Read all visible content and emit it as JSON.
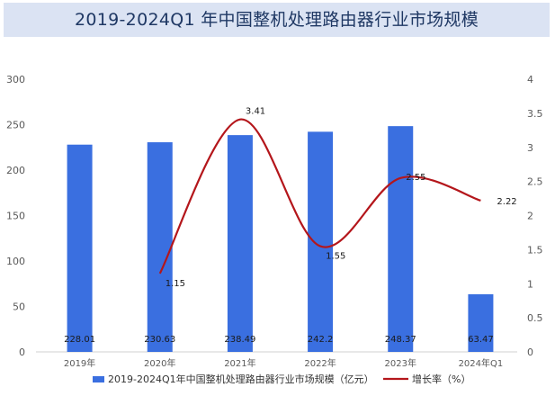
{
  "chart_data": {
    "type": "bar",
    "title": "2019-2024Q1 年中国整机处理路由器行业市场规模",
    "categories": [
      "2019年",
      "2020年",
      "2021年",
      "2022年",
      "2023年",
      "2024年Q1"
    ],
    "series": [
      {
        "name": "2019-2024Q1年中国整机处理路由器行业市场规模（亿元）",
        "type": "bar",
        "axis": "left",
        "values": [
          228.01,
          230.63,
          238.49,
          242.2,
          248.37,
          63.47
        ],
        "color": "#3a6fe0"
      },
      {
        "name": "增长率（%）",
        "type": "line",
        "axis": "right",
        "values": [
          null,
          1.15,
          3.41,
          1.55,
          2.55,
          2.22
        ],
        "color": "#b4161b"
      }
    ],
    "ylim_left": [
      0,
      300
    ],
    "yticks_left": [
      0,
      50,
      100,
      150,
      200,
      250,
      300
    ],
    "ylim_right": [
      0,
      4
    ],
    "yticks_right": [
      "0",
      "0.5",
      "1",
      "1.5",
      "2",
      "2.5",
      "3",
      "3.5",
      "4"
    ],
    "grid": false,
    "legend_position": "bottom"
  }
}
